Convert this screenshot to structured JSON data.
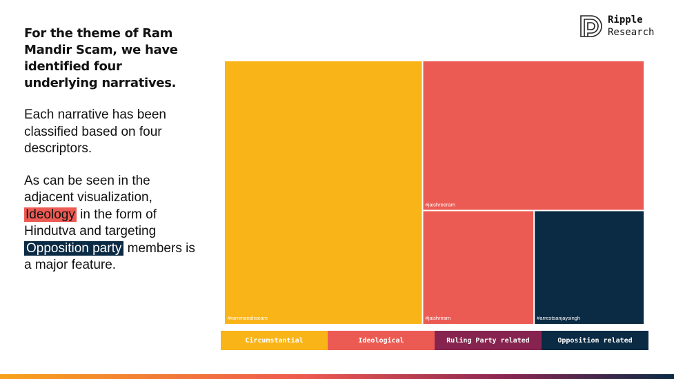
{
  "left": {
    "heading": "For the theme of Ram Mandir Scam, we have identified four underlying narratives.",
    "para1": "Each narrative has been classified based on four descriptors.",
    "para2_a": "As can be seen in the adjacent visualization, ",
    "para2_ideology": "Ideology",
    "para2_b": " in the form of Hindutva and targeting ",
    "para2_opposition": "Opposition party",
    "para2_c": " members is a major feature."
  },
  "logo": {
    "line1": "Ripple",
    "line2": "Research",
    "icon": "ripple-logo-icon"
  },
  "chart_data": {
    "type": "treemap",
    "title": "",
    "items": [
      {
        "label": "#rammandirscam",
        "category": "Circumstantial",
        "value": 47.2
      },
      {
        "label": "#jaishreeram",
        "category": "Ideological",
        "value": 30.0
      },
      {
        "label": "#jaishriram",
        "category": "Ideological",
        "value": 11.5
      },
      {
        "label": "#arrestsanjaysingh",
        "category": "Opposition related",
        "value": 11.3
      }
    ],
    "legend": [
      {
        "name": "Circumstantial",
        "color": "#f9b418"
      },
      {
        "name": "Ideological",
        "color": "#ec5b53"
      },
      {
        "name": "Ruling Party related",
        "color": "#86244f"
      },
      {
        "name": "Opposition related",
        "color": "#0b2a44"
      }
    ]
  }
}
